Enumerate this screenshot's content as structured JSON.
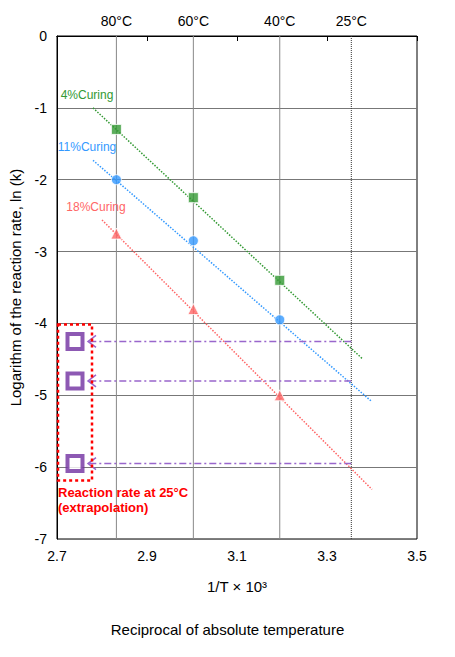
{
  "chart_data": {
    "type": "scatter",
    "xlabel": "1/T × 10³",
    "ylabel": "Logarithm of the reaction rate, ln (k)",
    "annotations": [
      "Reciprocal of absolute temperature"
    ],
    "xlim": [
      2.7,
      3.5
    ],
    "xticks": [
      2.7,
      2.9,
      3.1,
      3.3,
      3.5
    ],
    "x2lim": [
      2.7,
      3.5
    ],
    "x2ticks": [
      {
        "value": 2.832,
        "label": "80°C"
      },
      {
        "value": 3.003,
        "label": "60°C"
      },
      {
        "value": 3.195,
        "label": "40°C"
      },
      {
        "value": 3.354,
        "label": "25°C"
      }
    ],
    "ylim": [
      -7,
      0
    ],
    "yticks": [
      0,
      -1,
      -2,
      -3,
      -4,
      -5,
      -6,
      -7
    ],
    "grid": true,
    "series": [
      {
        "name": "4%Curing",
        "color": "#339933",
        "marker": "square",
        "x": [
          2.832,
          3.003,
          3.195
        ],
        "values": [
          -1.3,
          -2.25,
          -3.4
        ],
        "fit": {
          "x": [
            2.78,
            3.38
          ],
          "values": [
            -1.0,
            -4.5
          ],
          "line_style": "dotted"
        }
      },
      {
        "name": "11%Curing",
        "color": "#3399ff",
        "marker": "circle",
        "x": [
          2.832,
          3.003,
          3.195
        ],
        "values": [
          -2.0,
          -2.85,
          -3.95
        ],
        "fit": {
          "x": [
            2.78,
            3.4
          ],
          "values": [
            -1.73,
            -5.09
          ],
          "line_style": "dotted"
        }
      },
      {
        "name": "18%Curing",
        "color": "#ff6666",
        "marker": "triangle",
        "x": [
          2.832,
          3.003,
          3.195
        ],
        "values": [
          -2.75,
          -3.8,
          -5.0
        ],
        "fit": {
          "x": [
            2.8,
            3.4
          ],
          "values": [
            -2.56,
            -6.31
          ],
          "line_style": "dotted"
        }
      }
    ],
    "extrapolation": {
      "label": [
        "Reaction rate at 25°C",
        "(extrapolation)"
      ],
      "color": "#7030a0",
      "marker": "square",
      "x": 2.74,
      "values": [
        -4.25,
        -4.8,
        -5.95
      ]
    }
  }
}
